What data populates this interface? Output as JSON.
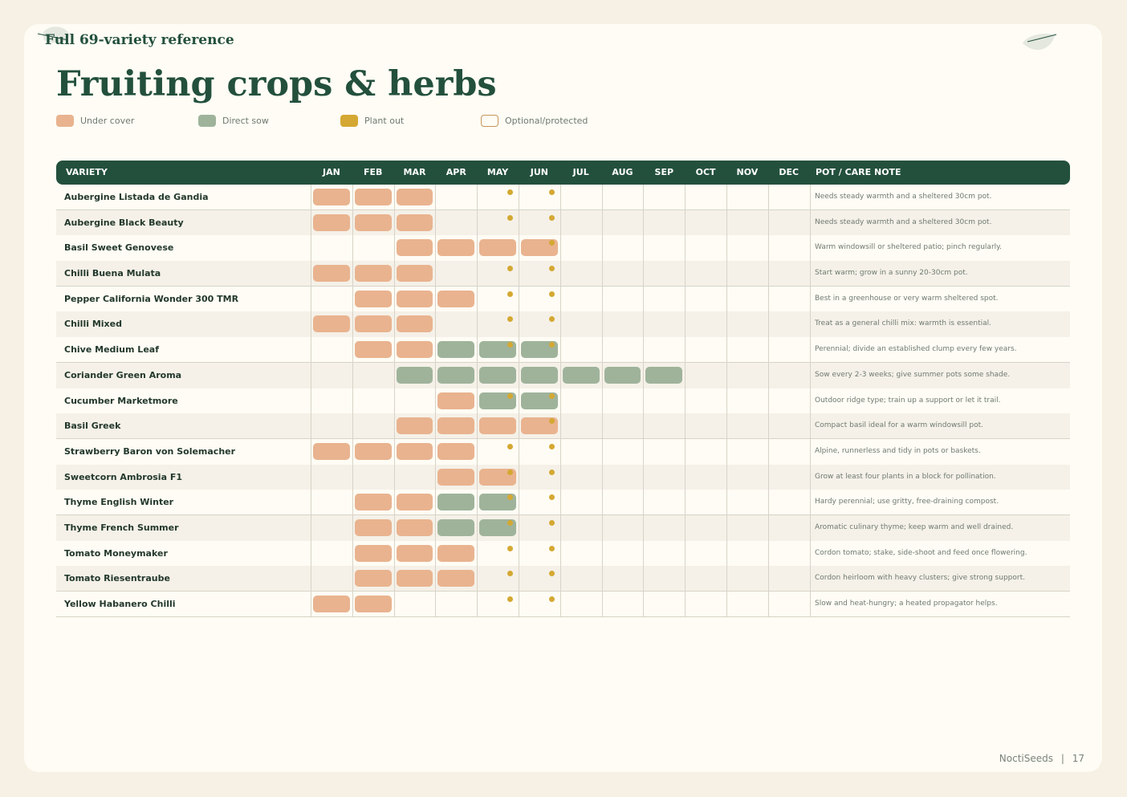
{
  "header": {
    "subtitle": "Full 69-variety reference",
    "title": "Fruiting crops & herbs"
  },
  "legend": [
    {
      "key": "under",
      "label": "Under cover",
      "color": "#e9b38f"
    },
    {
      "key": "direct",
      "label": "Direct sow",
      "color": "#9fb39b"
    },
    {
      "key": "plant",
      "label": "Plant out",
      "color": "#d4a832"
    },
    {
      "key": "optional",
      "label": "Optional/protected",
      "color": "#c8955a"
    }
  ],
  "columns": {
    "variety": "VARIETY",
    "months": [
      "JAN",
      "FEB",
      "MAR",
      "APR",
      "MAY",
      "JUN",
      "JUL",
      "AUG",
      "SEP",
      "OCT",
      "NOV",
      "DEC"
    ],
    "note": "POT / CARE NOTE"
  },
  "rows": [
    {
      "variety": "Aubergine Listada de Gandia",
      "under": [
        1,
        2,
        3
      ],
      "direct": [],
      "plant": [
        5,
        6
      ],
      "note": "Needs steady warmth and a sheltered 30cm pot."
    },
    {
      "variety": "Aubergine Black Beauty",
      "under": [
        1,
        2,
        3
      ],
      "direct": [],
      "plant": [
        5,
        6
      ],
      "note": "Needs steady warmth and a sheltered 30cm pot."
    },
    {
      "variety": "Basil Sweet Genovese",
      "under": [
        3,
        4,
        5,
        6
      ],
      "direct": [],
      "plant": [
        6
      ],
      "note": "Warm windowsill or sheltered patio; pinch regularly."
    },
    {
      "variety": "Chilli Buena Mulata",
      "under": [
        1,
        2,
        3
      ],
      "direct": [],
      "plant": [
        5,
        6
      ],
      "note": "Start warm; grow in a sunny 20-30cm pot."
    },
    {
      "variety": "Pepper California Wonder 300 TMR",
      "under": [
        2,
        3,
        4
      ],
      "direct": [],
      "plant": [
        5,
        6
      ],
      "note": "Best in a greenhouse or very warm sheltered spot."
    },
    {
      "variety": "Chilli Mixed",
      "under": [
        1,
        2,
        3
      ],
      "direct": [],
      "plant": [
        5,
        6
      ],
      "note": "Treat as a general chilli mix: warmth is essential."
    },
    {
      "variety": "Chive Medium Leaf",
      "under": [
        2,
        3
      ],
      "direct": [
        4,
        5,
        6
      ],
      "plant": [
        5,
        6
      ],
      "note": "Perennial; divide an established clump every few years."
    },
    {
      "variety": "Coriander Green Aroma",
      "under": [],
      "direct": [
        3,
        4,
        5,
        6,
        7,
        8,
        9
      ],
      "plant": [],
      "note": "Sow every 2-3 weeks; give summer pots some shade."
    },
    {
      "variety": "Cucumber Marketmore",
      "under": [
        4
      ],
      "direct": [
        5,
        6
      ],
      "plant": [
        5,
        6
      ],
      "note": "Outdoor ridge type; train up a support or let it trail."
    },
    {
      "variety": "Basil Greek",
      "under": [
        3,
        4,
        5,
        6
      ],
      "direct": [],
      "plant": [
        6
      ],
      "note": "Compact basil ideal for a warm windowsill pot."
    },
    {
      "variety": "Strawberry Baron von Solemacher",
      "under": [
        1,
        2,
        3,
        4
      ],
      "direct": [],
      "plant": [
        5,
        6
      ],
      "note": "Alpine, runnerless and tidy in pots or baskets."
    },
    {
      "variety": "Sweetcorn Ambrosia F1",
      "under": [
        4,
        5
      ],
      "direct": [],
      "plant": [
        5,
        6
      ],
      "note": "Grow at least four plants in a block for pollination."
    },
    {
      "variety": "Thyme English Winter",
      "under": [
        2,
        3
      ],
      "direct": [
        4,
        5
      ],
      "plant": [
        5,
        6
      ],
      "note": "Hardy perennial; use gritty, free-draining compost."
    },
    {
      "variety": "Thyme French Summer",
      "under": [
        2,
        3
      ],
      "direct": [
        4,
        5
      ],
      "plant": [
        5,
        6
      ],
      "note": "Aromatic culinary thyme; keep warm and well drained."
    },
    {
      "variety": "Tomato Moneymaker",
      "under": [
        2,
        3,
        4
      ],
      "direct": [],
      "plant": [
        5,
        6
      ],
      "note": "Cordon tomato; stake, side-shoot and feed once flowering."
    },
    {
      "variety": "Tomato Riesentraube",
      "under": [
        2,
        3,
        4
      ],
      "direct": [],
      "plant": [
        5,
        6
      ],
      "note": "Cordon heirloom with heavy clusters; give strong support."
    },
    {
      "variety": "Yellow Habanero Chilli",
      "under": [
        1,
        2
      ],
      "direct": [],
      "plant": [
        5,
        6
      ],
      "note": "Slow and heat-hungry; a heated propagator helps."
    }
  ],
  "footer": {
    "brand": "NoctiSeeds",
    "separator": "|",
    "page": "17"
  }
}
